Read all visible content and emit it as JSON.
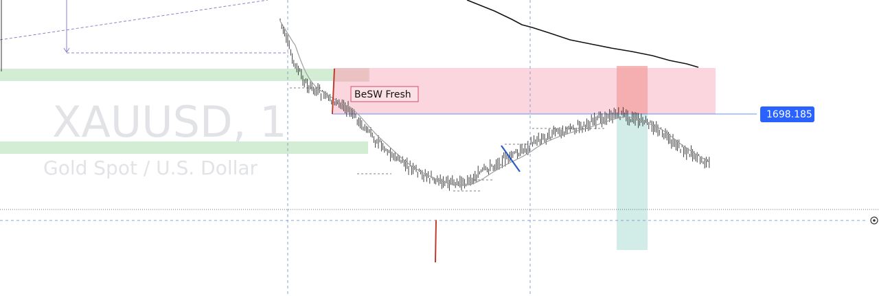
{
  "watermark": {
    "symbol": "XAUUSD, 1",
    "description": "Gold Spot / U.S. Dollar"
  },
  "annotation": {
    "zone_label": "BeSW Fresh"
  },
  "price_label": {
    "value": "1698.185"
  },
  "colors": {
    "zone_pink": "#f9c8d3",
    "zone_red": "#f4a5a5",
    "zone_teal": "#cdeae6",
    "zone_green": "#d3ecd4",
    "candle": "#2a2a2a",
    "ma_slow": "#111111",
    "ma_fast": "#9e9e9e",
    "price_line": "#2962ff",
    "price_tag": "#2962ff",
    "red_mark": "#c0392b",
    "blue_mark": "#2a5cc4",
    "dashed": "#7e8fbd"
  },
  "chart_data": {
    "type": "line",
    "symbol": "XAUUSD",
    "timeframe": "1",
    "marked_price": 1698.185,
    "series": [
      {
        "values": [
          1712.0,
          1706.0,
          1702.5,
          1701.5,
          1700.2,
          1699.5,
          1697.6,
          1695.4,
          1693.8,
          1692.0,
          1690.6,
          1689.6,
          1688.8,
          1688.2,
          1688.0,
          1688.5,
          1689.8,
          1690.9,
          1691.8,
          1692.7,
          1694.1,
          1694.9,
          1695.6,
          1696.1,
          1696.6,
          1697.3,
          1697.9,
          1698.2,
          1697.4,
          1696.8,
          1695.7,
          1694.1,
          1692.9,
          1691.8,
          1690.7
        ]
      }
    ]
  }
}
